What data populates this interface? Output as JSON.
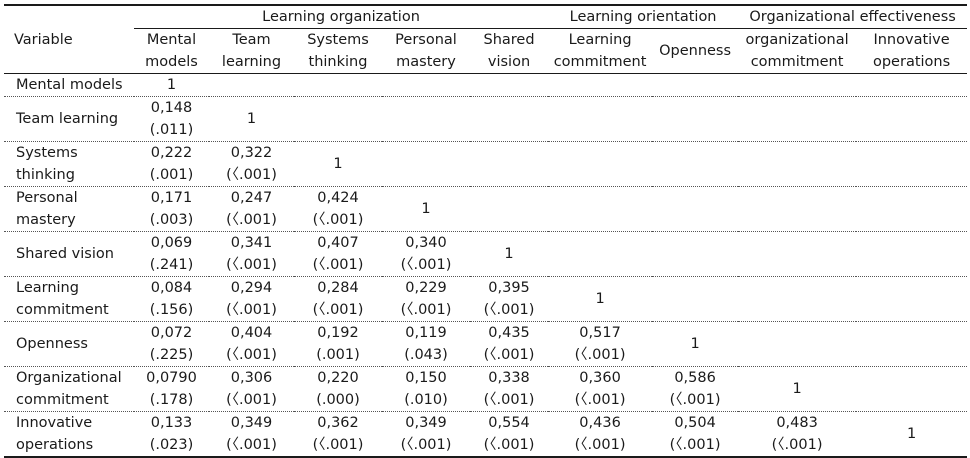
{
  "header": {
    "variable": "Variable",
    "groups": {
      "learning_organization": "Learning  organization",
      "learning_orientation": "Learning  orientation",
      "organizational_effectiveness": "Organizational  effectiveness"
    },
    "columns": [
      [
        "Mental",
        "models"
      ],
      [
        "Team",
        "learning"
      ],
      [
        "Systems",
        "thinking"
      ],
      [
        "Personal",
        "mastery"
      ],
      [
        "Shared",
        "vision"
      ],
      [
        "Learning",
        "commitment"
      ],
      [
        "Openness"
      ],
      [
        "organizational",
        "commitment"
      ],
      [
        "Innovative",
        "operations"
      ]
    ]
  },
  "rows": [
    {
      "label": [
        "Mental  models"
      ],
      "cells": [],
      "diag": "1"
    },
    {
      "label": [
        "Team  learning"
      ],
      "cells": [
        [
          "0,148",
          "(.011)"
        ]
      ],
      "diag": "1"
    },
    {
      "label": [
        "Systems",
        "thinking"
      ],
      "cells": [
        [
          "0,222",
          "(.001)"
        ],
        [
          "0,322",
          "(〈.001)"
        ]
      ],
      "diag": "1"
    },
    {
      "label": [
        "Personal",
        "mastery"
      ],
      "cells": [
        [
          "0,171",
          "(.003)"
        ],
        [
          "0,247",
          "(〈.001)"
        ],
        [
          "0,424",
          "(〈.001)"
        ]
      ],
      "diag": "1"
    },
    {
      "label": [
        "Shared  vision"
      ],
      "cells": [
        [
          "0,069",
          "(.241)"
        ],
        [
          "0,341",
          "(〈.001)"
        ],
        [
          "0,407",
          "(〈.001)"
        ],
        [
          "0,340",
          "(〈.001)"
        ]
      ],
      "diag": "1"
    },
    {
      "label": [
        "Learning",
        "commitment"
      ],
      "cells": [
        [
          "0,084",
          "(.156)"
        ],
        [
          "0,294",
          "(〈.001)"
        ],
        [
          "0,284",
          "(〈.001)"
        ],
        [
          "0,229",
          "(〈.001)"
        ],
        [
          "0,395",
          "(〈.001)"
        ]
      ],
      "diag": "1"
    },
    {
      "label": [
        "Openness"
      ],
      "cells": [
        [
          "0,072",
          "(.225)"
        ],
        [
          "0,404",
          "(〈.001)"
        ],
        [
          "0,192",
          "(.001)"
        ],
        [
          "0,119",
          "(.043)"
        ],
        [
          "0,435",
          "(〈.001)"
        ],
        [
          "0,517",
          "(〈.001)"
        ]
      ],
      "diag": "1"
    },
    {
      "label": [
        "Organizational",
        "commitment"
      ],
      "cells": [
        [
          "0,0790",
          "(.178)"
        ],
        [
          "0,306",
          "(〈.001)"
        ],
        [
          "0,220",
          "(.000)"
        ],
        [
          "0,150",
          "(.010)"
        ],
        [
          "0,338",
          "(〈.001)"
        ],
        [
          "0,360",
          "(〈.001)"
        ],
        [
          "0,586",
          "(〈.001)"
        ]
      ],
      "diag": "1"
    },
    {
      "label": [
        "Innovative",
        "operations"
      ],
      "cells": [
        [
          "0,133",
          "(.023)"
        ],
        [
          "0,349",
          "(〈.001)"
        ],
        [
          "0,362",
          "(〈.001)"
        ],
        [
          "0,349",
          "(〈.001)"
        ],
        [
          "0,554",
          "(〈.001)"
        ],
        [
          "0,436",
          "(〈.001)"
        ],
        [
          "0,504",
          "(〈.001)"
        ],
        [
          "0,483",
          "(〈.001)"
        ]
      ],
      "diag": "1"
    }
  ]
}
